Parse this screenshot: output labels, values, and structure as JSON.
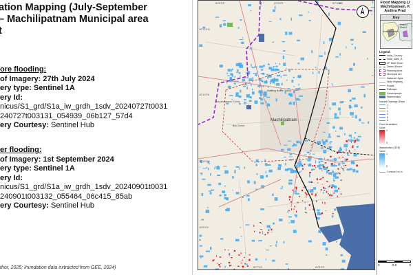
{
  "title": "ation Mapping (July-September\n – Machilipatnam Municipal area\nt",
  "before": {
    "heading": "ore flooding:",
    "date_label": "of Imagery:",
    "date_value": "27th July 2024",
    "type_label": "ery type:",
    "type_value": "Sentinel 1A",
    "id_label": "ery Id:",
    "id_line1": "nicus/S1_grd/S1a_iw_grdh_1sdv_20240727t0031",
    "id_line2": "240727t003131_054939_06b127_57d4",
    "courtesy_label": "ery Courtesy:",
    "courtesy_value": "Sentinel Hub"
  },
  "after": {
    "heading": "er flooding:",
    "date_label": "of Imagery:",
    "date_value": "1st September 2024",
    "type_label": "ery type:",
    "type_value": "Sentinel 1A",
    "id_label": "ery Id:",
    "id_line1": "nicus/S1_grd/S1a_iw_grdh_1sdv_20240901t0031",
    "id_line2": "240901t003132_055464_06c415_85ab",
    "courtesy_label": "ery Courtesy:",
    "courtesy_value": "Sentinel Hub"
  },
  "source_note": "thor, 2025; Inundation data extracted from GEE, 2024)",
  "map": {
    "coords_top": [
      "81°8'0\"E",
      "81°9'0\"E",
      "81°10'0\"E"
    ],
    "coords_bottom": [
      "81°7'0\"E",
      "81°8'0\"E"
    ],
    "coords_left": [
      "16°12'0\"N",
      "16°11'0\"N",
      "16°10'0\"N",
      "16°9'0\"N"
    ],
    "labels": {
      "town": "Machilipatnam",
      "place1": "Suryanarayana Colony",
      "place2": "Housing Board Colony",
      "place3": "Bus Centre"
    },
    "north_symbol": "N",
    "colors": {
      "water": "#4a6fa8",
      "inundation_pre": "#3fa9f5",
      "inundation_post": "#e11b22",
      "boundary": "#9b1fd1",
      "roads": "#d98e8e",
      "railway": "#111111",
      "greenspace": "#6fbf4a"
    }
  },
  "legend": {
    "title_lines": [
      "Flood Mapping (J",
      "Machilipatnam, K",
      "Andhra Prad"
    ],
    "keymap_title": "Key",
    "keymap_labels": [
      "Andhra Pradesh",
      "Krishna District"
    ],
    "heading": "Legend",
    "items": [
      "India_Country",
      "India_State_B",
      "AP State Boun",
      "District Bound",
      "Planning Area",
      "Municipal Are",
      "National Highe",
      "State Highway",
      "Roads",
      "Railways",
      "Greenspaces",
      "Waterbodies"
    ],
    "drainage_heading": "Natural Drainage (Strea",
    "drainage_orders": [
      "1",
      "2",
      "3",
      "4",
      "5",
      "6"
    ],
    "flood_heading": "Flood Inundation",
    "value_label": "Value",
    "flood_values": [
      "1",
      "0"
    ],
    "water_heading": "Waterbodies (GEE)",
    "water_values": [
      "1",
      "0"
    ],
    "contour_label": "Contour 1m in",
    "scale_values": [
      "0",
      "0.8",
      "0"
    ]
  }
}
